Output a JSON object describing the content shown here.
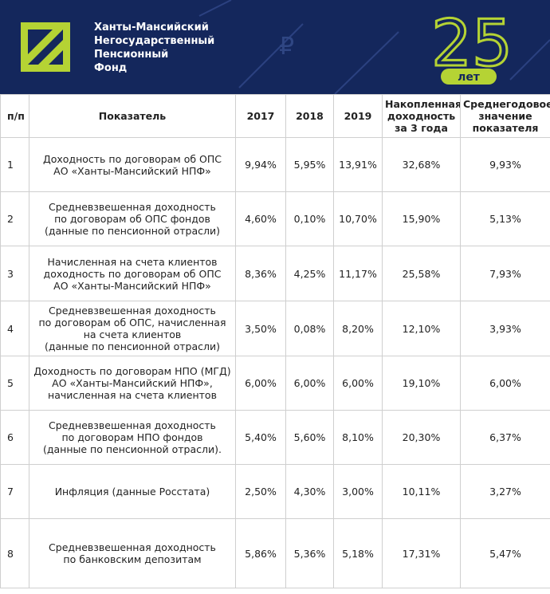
{
  "header": {
    "org_lines": [
      "Ханты-Мансийский",
      "Негосударственный",
      "Пенсионный",
      "Фонд"
    ],
    "badge_number": "25",
    "badge_word": "лет"
  },
  "table": {
    "columns": [
      "п/п",
      "Показатель",
      "2017",
      "2018",
      "2019",
      "Накопленная\nдоходность\nза 3 года",
      "Среднегодовое\nзначение\nпоказателя"
    ],
    "rows": [
      [
        "1",
        "Доходность по договорам об ОПС\nАО «Ханты-Мансийский НПФ»",
        "9,94%",
        "5,95%",
        "13,91%",
        "32,68%",
        "9,93%"
      ],
      [
        "2",
        "Средневзвешенная доходность\nпо договорам об ОПС фондов\n(данные по пенсионной отрасли)",
        "4,60%",
        "0,10%",
        "10,70%",
        "15,90%",
        "5,13%"
      ],
      [
        "3",
        "Начисленная на счета клиентов\nдоходность по договорам об ОПС\nАО «Ханты-Мансийский НПФ»",
        "8,36%",
        "4,25%",
        "11,17%",
        "25,58%",
        "7,93%"
      ],
      [
        "4",
        "Средневзвешенная доходность\nпо договорам об ОПС, начисленная\nна счета клиентов\n(данные по пенсионной отрасли)",
        "3,50%",
        "0,08%",
        "8,20%",
        "12,10%",
        "3,93%"
      ],
      [
        "5",
        "Доходность по договорам НПО (МГД)\nАО «Ханты-Мансийский НПФ»,\nначисленная на счета клиентов",
        "6,00%",
        "6,00%",
        "6,00%",
        "19,10%",
        "6,00%"
      ],
      [
        "6",
        "Средневзвешенная доходность\nпо договорам НПО фондов\n(данные по пенсионной отрасли).",
        "5,40%",
        "5,60%",
        "8,10%",
        "20,30%",
        "6,37%"
      ],
      [
        "7",
        "Инфляция  (данные Росстата)",
        "2,50%",
        "4,30%",
        "3,00%",
        "10,11%",
        "3,27%"
      ],
      [
        "8",
        "Средневзвешенная доходность\nпо банковским депозитам",
        "5,86%",
        "5,36%",
        "5,18%",
        "17,31%",
        "5,47%"
      ]
    ]
  }
}
